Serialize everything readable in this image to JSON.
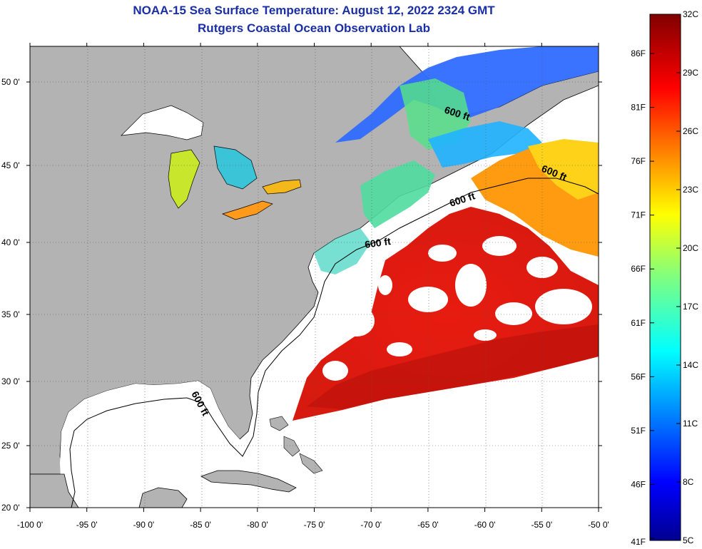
{
  "title": {
    "line1": "NOAA-15 Sea Surface Temperature:  August 12, 2022 2324 GMT",
    "line2": "Rutgers Coastal Ocean Observation Lab"
  },
  "map": {
    "lon_range": [
      -100,
      -50
    ],
    "lat_range": [
      20,
      52
    ],
    "lon_ticks": [
      {
        "value": -100,
        "label": "-100 0'"
      },
      {
        "value": -95,
        "label": "-95 0'"
      },
      {
        "value": -90,
        "label": "-90 0'"
      },
      {
        "value": -85,
        "label": "-85 0'"
      },
      {
        "value": -80,
        "label": "-80 0'"
      },
      {
        "value": -75,
        "label": "-75 0'"
      },
      {
        "value": -70,
        "label": "-70 0'"
      },
      {
        "value": -65,
        "label": "-65 0'"
      },
      {
        "value": -60,
        "label": "-60 0'"
      },
      {
        "value": -55,
        "label": "-55 0'"
      },
      {
        "value": -50,
        "label": "-50 0'"
      }
    ],
    "lat_ticks": [
      {
        "value": 20,
        "label": "20 0'"
      },
      {
        "value": 25,
        "label": "25 0'"
      },
      {
        "value": 30,
        "label": "30 0'"
      },
      {
        "value": 35,
        "label": "35 0'"
      },
      {
        "value": 40,
        "label": "40 0'"
      },
      {
        "value": 45,
        "label": "45 0'"
      },
      {
        "value": 50,
        "label": "50 0'"
      }
    ],
    "contour_label": "600 ft",
    "land_color": "#b3b3b3",
    "no_data_color": "#ffffff"
  },
  "colorbar": {
    "min_c": 5,
    "max_c": 32,
    "celsius_labels": [
      "32C",
      "29C",
      "26C",
      "23C",
      "20C",
      "17C",
      "14C",
      "11C",
      "8C",
      "5C"
    ],
    "fahrenheit_labels": [
      "86F",
      "81F",
      "76F",
      "71F",
      "66F",
      "61F",
      "56F",
      "51F",
      "46F",
      "41F"
    ]
  }
}
